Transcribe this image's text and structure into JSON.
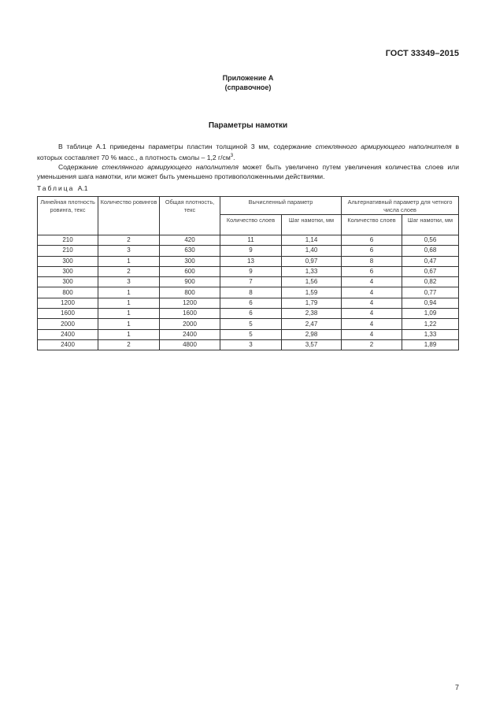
{
  "header": {
    "doc_id": "ГОСТ 33349–2015"
  },
  "appendix": {
    "title": "Приложение А",
    "subtitle": "(справочное)"
  },
  "section_title": "Параметры намотки",
  "paragraphs": [
    {
      "t1": "В таблице А.1 приведены параметры пластин толщиной 3 мм, содержание ",
      "i1": "стеклянного армирующего наполнителя",
      "t2": " в которых составляет 70 % масс., а плотность смолы – 1,2 г/см",
      "sup": "3",
      "t3": "."
    },
    {
      "t1": "Содержание ",
      "i1": "стеклянного армирующего наполнителя",
      "t2": " может быть увеличено путем увеличения количества слоев или уменьшения шага намотки, или может быть уменьшено противоположенными действиями."
    }
  ],
  "table": {
    "caption": "Таблица",
    "caption_num": "А.1",
    "headers": [
      "Линейная плотность ровинга, текс",
      "Количество ровингов",
      "Общая плотность, текс",
      "Вычисленный параметр",
      "Альтернативный параметр для четного числа слоев"
    ],
    "subheaders": [
      "Количество слоев",
      "Шаг намотки, мм",
      "Количество слоев",
      "Шаг намотки, мм"
    ],
    "rows": [
      [
        "210",
        "2",
        "420",
        "11",
        "1,14",
        "6",
        "0,56"
      ],
      [
        "210",
        "3",
        "630",
        "9",
        "1,40",
        "6",
        "0,68"
      ],
      [
        "300",
        "1",
        "300",
        "13",
        "0,97",
        "8",
        "0,47"
      ],
      [
        "300",
        "2",
        "600",
        "9",
        "1,33",
        "6",
        "0,67"
      ],
      [
        "300",
        "3",
        "900",
        "7",
        "1,56",
        "4",
        "0,82"
      ],
      [
        "800",
        "1",
        "800",
        "8",
        "1,59",
        "4",
        "0,77"
      ],
      [
        "1200",
        "1",
        "1200",
        "6",
        "1,79",
        "4",
        "0,94"
      ],
      [
        "1600",
        "1",
        "1600",
        "6",
        "2,38",
        "4",
        "1,09"
      ],
      [
        "2000",
        "1",
        "2000",
        "5",
        "2,47",
        "4",
        "1,22"
      ],
      [
        "2400",
        "1",
        "2400",
        "5",
        "2,98",
        "4",
        "1,33"
      ],
      [
        "2400",
        "2",
        "4800",
        "3",
        "3,57",
        "2",
        "1,89"
      ]
    ]
  },
  "page_number": "7"
}
